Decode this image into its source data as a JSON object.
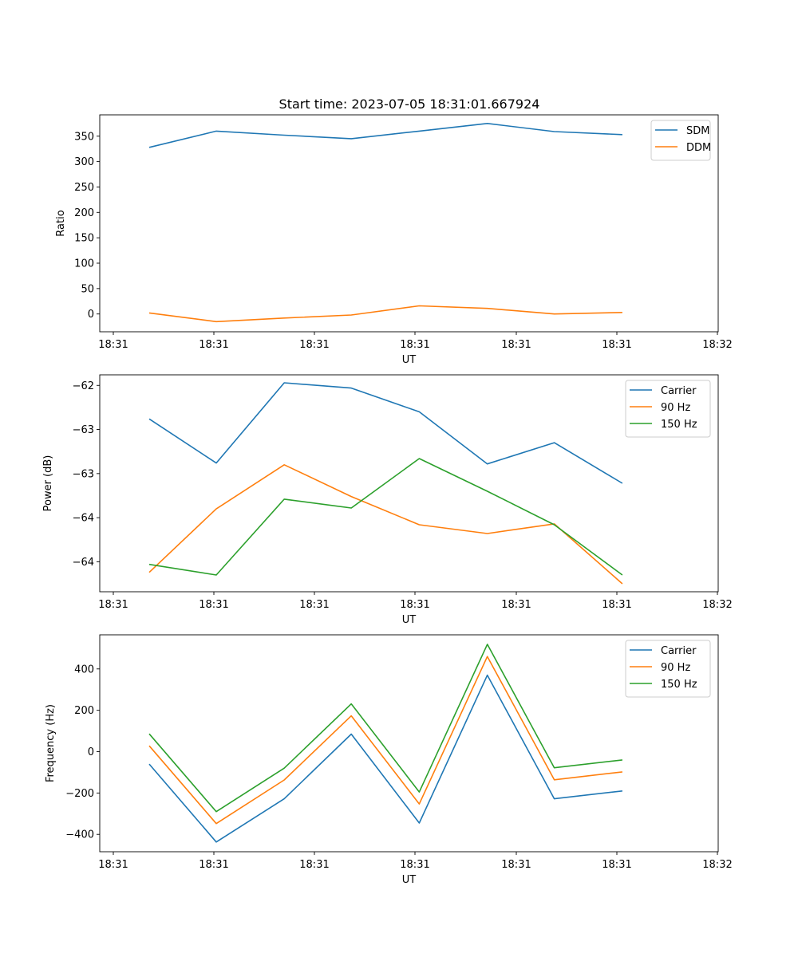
{
  "figure_title": "Start time: 2023-07-05 18:31:01.667924",
  "x_tick_labels": [
    "18:31",
    "18:31",
    "18:31",
    "18:31",
    "18:31",
    "18:31",
    "18:32"
  ],
  "chart_data": [
    {
      "type": "line",
      "title": "Start time: 2023-07-05 18:31:01.667924",
      "xlabel": "UT",
      "ylabel": "Ratio",
      "legend_position": "top-right",
      "grid": false,
      "xlim": [
        0.0,
        6.0
      ],
      "ylim": [
        -35,
        392
      ],
      "yticks": [
        0,
        50,
        100,
        150,
        200,
        250,
        300,
        350
      ],
      "x": [
        0.48,
        1.13,
        1.79,
        2.44,
        3.1,
        3.76,
        4.41,
        5.07
      ],
      "series": [
        {
          "name": "SDM",
          "color": "#1f77b4",
          "values": [
            328,
            360,
            352,
            345,
            360,
            375,
            359,
            353
          ]
        },
        {
          "name": "DDM",
          "color": "#ff7f0e",
          "values": [
            2,
            -15,
            -8,
            -2,
            16,
            11,
            0,
            3
          ]
        }
      ]
    },
    {
      "type": "line",
      "title": "",
      "xlabel": "UT",
      "ylabel": "Power (dB)",
      "legend_position": "top-right",
      "grid": false,
      "xlim": [
        0.0,
        6.0
      ],
      "ylim": [
        -64.84,
        -62.38
      ],
      "yticks": [
        -64.5,
        -64.0,
        -63.5,
        -63.0,
        -62.5
      ],
      "x": [
        0.48,
        1.13,
        1.79,
        2.44,
        3.1,
        3.76,
        4.41,
        5.07
      ],
      "series": [
        {
          "name": "Carrier",
          "color": "#1f77b4",
          "values": [
            -62.88,
            -63.38,
            -62.47,
            -62.53,
            -62.8,
            -63.39,
            -63.15,
            -63.61
          ]
        },
        {
          "name": "90 Hz",
          "color": "#ff7f0e",
          "values": [
            -64.62,
            -63.9,
            -63.4,
            -63.76,
            -64.08,
            -64.18,
            -64.07,
            -64.75
          ]
        },
        {
          "name": "150 Hz",
          "color": "#2ca02c",
          "values": [
            -64.53,
            -64.65,
            -63.79,
            -63.89,
            -63.33,
            -63.7,
            -64.08,
            -64.65
          ]
        }
      ]
    },
    {
      "type": "line",
      "title": "",
      "xlabel": "UT",
      "ylabel": "Frequency (Hz)",
      "legend_position": "top-right",
      "grid": false,
      "xlim": [
        0.0,
        6.0
      ],
      "ylim": [
        -484,
        565
      ],
      "yticks": [
        -400,
        -200,
        0,
        200,
        400
      ],
      "x": [
        0.48,
        1.13,
        1.79,
        2.44,
        3.1,
        3.76,
        4.41,
        5.07
      ],
      "series": [
        {
          "name": "Carrier",
          "color": "#1f77b4",
          "values": [
            -60,
            -437,
            -228,
            85,
            -345,
            370,
            -228,
            -190
          ]
        },
        {
          "name": "90 Hz",
          "color": "#ff7f0e",
          "values": [
            28,
            -348,
            -137,
            173,
            -253,
            460,
            -136,
            -98
          ]
        },
        {
          "name": "150 Hz",
          "color": "#2ca02c",
          "values": [
            86,
            -290,
            -80,
            231,
            -195,
            519,
            -78,
            -40
          ]
        }
      ]
    }
  ]
}
